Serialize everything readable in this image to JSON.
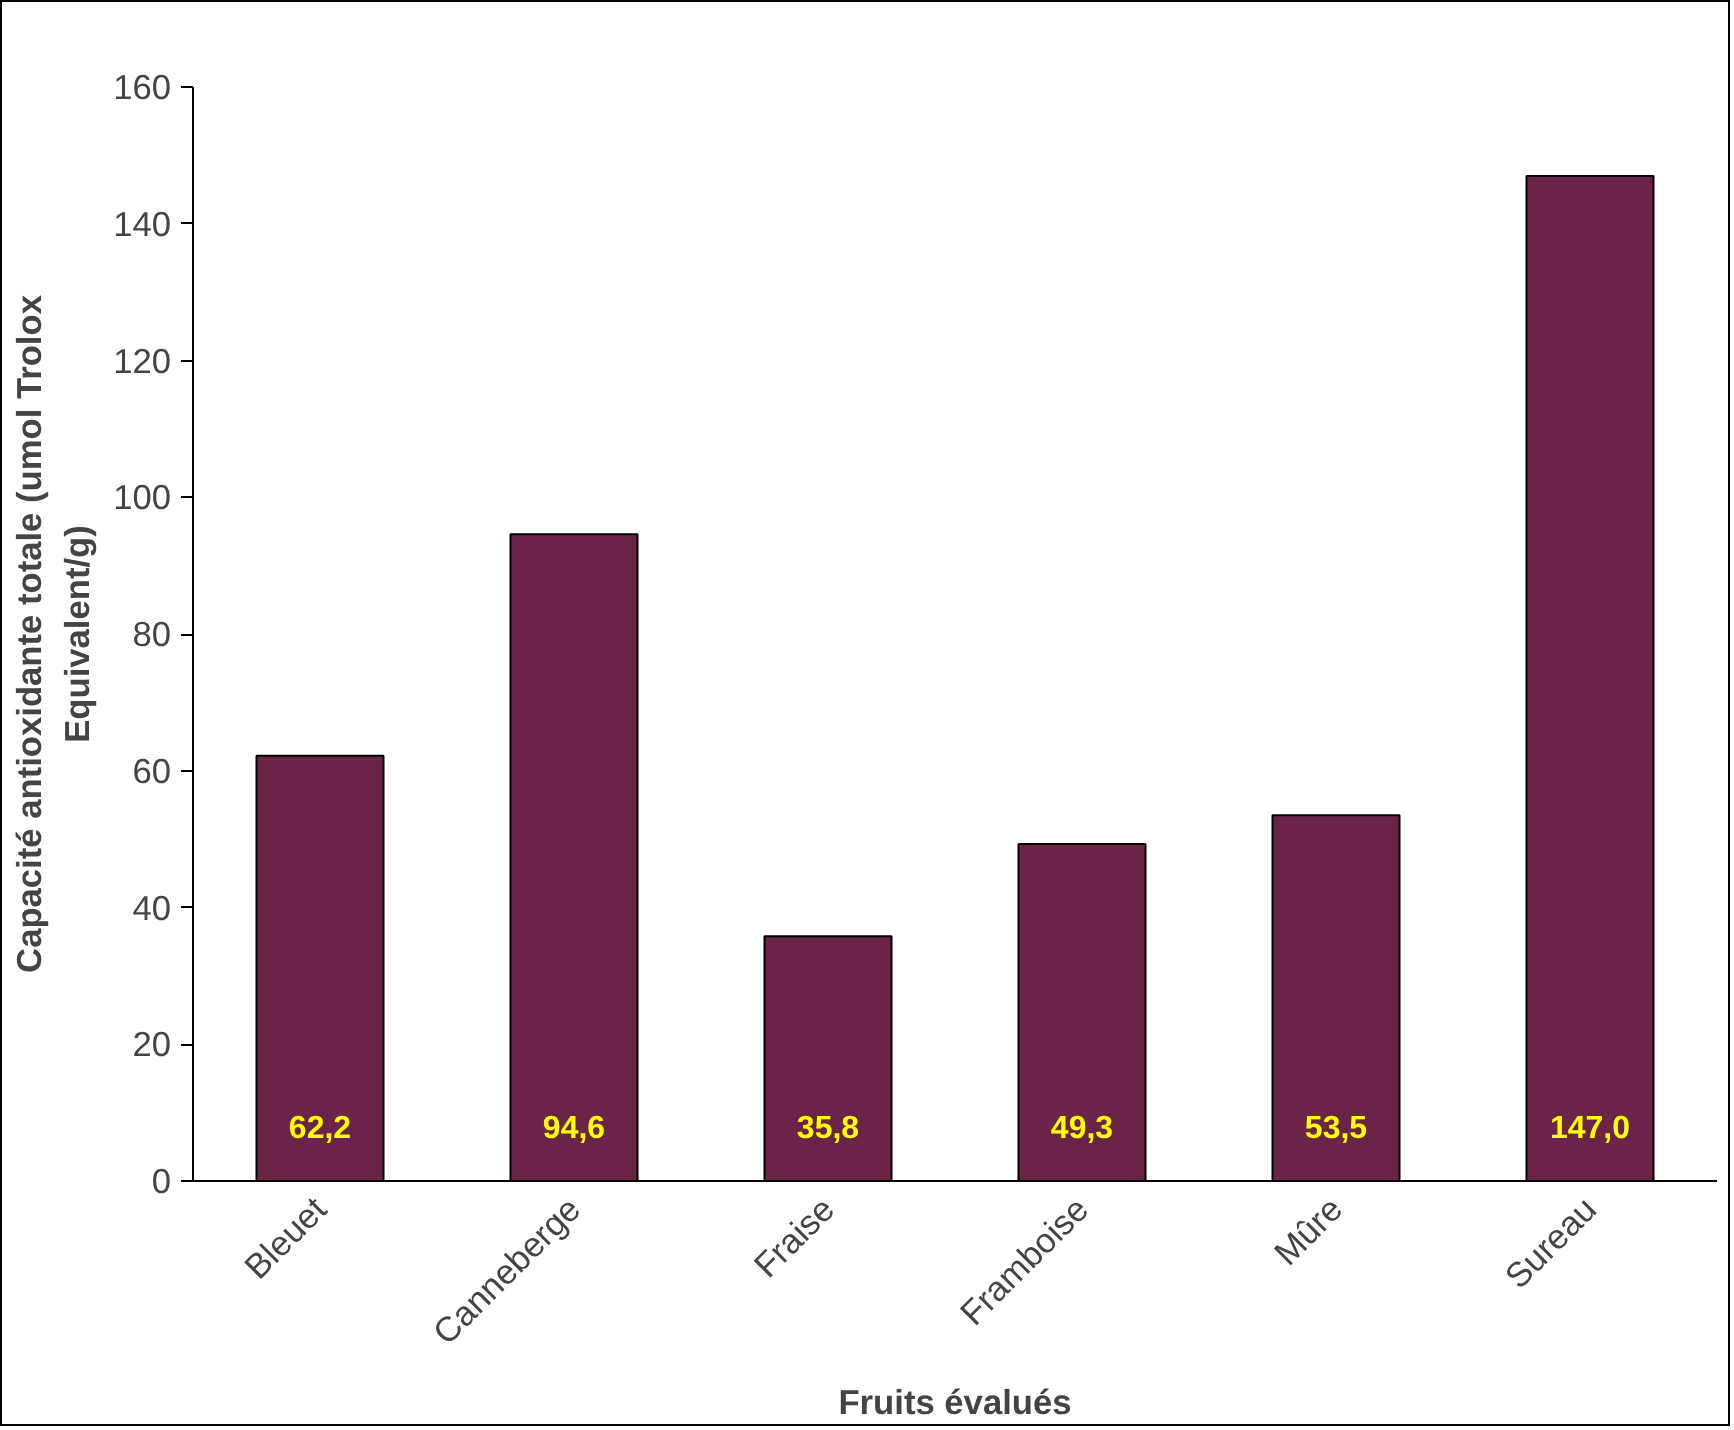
{
  "chart_data": {
    "type": "bar",
    "xlabel": "Fruits évalués",
    "ylabel": "Capacité antioxidante totale (umol Trolox\nEquivalent/g)",
    "categories": [
      "Bleuet",
      "Canneberge",
      "Fraise",
      "Framboise",
      "Mûre",
      "Sureau"
    ],
    "values": [
      62.2,
      94.6,
      35.8,
      49.3,
      53.5,
      147.0
    ],
    "value_labels": [
      "62,2",
      "94,6",
      "35,8",
      "49,3",
      "53,5",
      "147,0"
    ],
    "color": "#6b2448",
    "ylim": [
      0,
      160
    ],
    "yticks": [
      0,
      20,
      40,
      60,
      80,
      100,
      120,
      140,
      160
    ],
    "grid": false
  }
}
